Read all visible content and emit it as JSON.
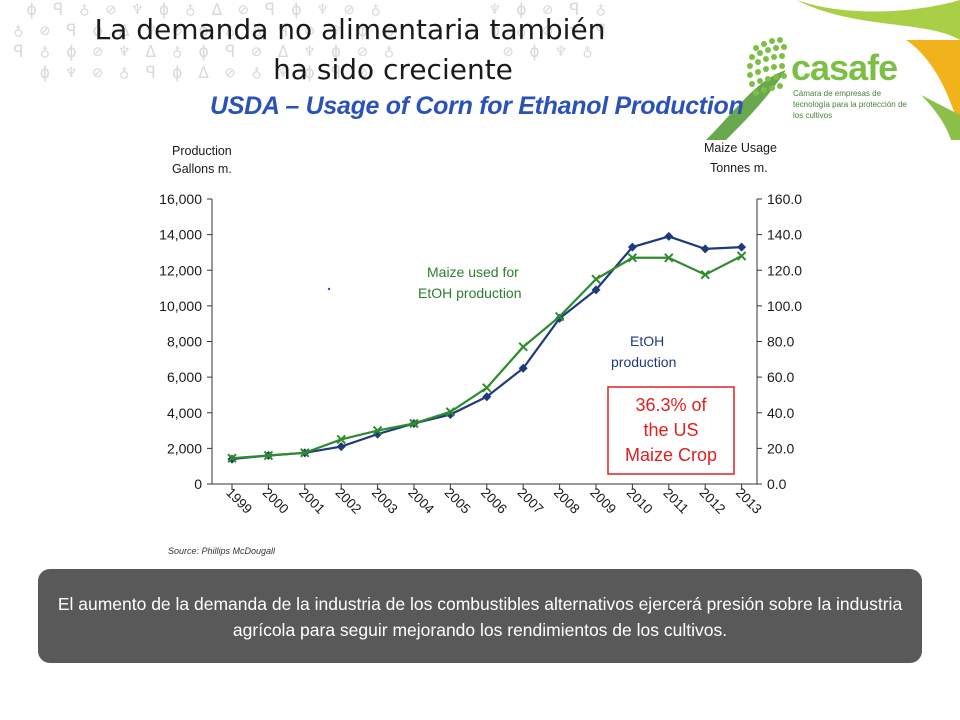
{
  "slide": {
    "title_line1": "La demanda no alimentaria también",
    "title_line2": "ha sido creciente",
    "logo_name": "casafe",
    "logo_tagline": "Cámara de empresas de tecnología para la protección de los cultivos",
    "source": "Source: Phillips McDougall",
    "banner_text": "El aumento de la demanda de la industria de los combustibles alternativos ejercerá presión sobre la industria agrícola para seguir mejorando los rendimientos de los cultivos."
  },
  "chart_data": {
    "type": "line",
    "title": "USDA – Usage of Corn for Ethanol Production",
    "y_left_label": [
      "Production",
      "Gallons m."
    ],
    "y_right_label": [
      "Maize Usage",
      "Tonnes m."
    ],
    "x": [
      "1999",
      "2000",
      "2001",
      "2002",
      "2003",
      "2004",
      "2005",
      "2006",
      "2007",
      "2008",
      "2009",
      "2010",
      "2011",
      "2012",
      "2013"
    ],
    "y_left_ticks": [
      "0",
      "2,000",
      "4,000",
      "6,000",
      "8,000",
      "10,000",
      "12,000",
      "14,000",
      "16,000"
    ],
    "y_right_ticks": [
      "0.0",
      "20.0",
      "40.0",
      "60.0",
      "80.0",
      "100.0",
      "120.0",
      "140.0",
      "160.0"
    ],
    "ylim_left": [
      0,
      16000
    ],
    "ylim_right": [
      0,
      160
    ],
    "series": [
      {
        "name": "EtOH production",
        "axis": "left",
        "color": "#1f3a7a",
        "marker": "diamond",
        "values": [
          1400,
          1600,
          1750,
          2100,
          2800,
          3400,
          3900,
          4900,
          6500,
          9300,
          10900,
          13300,
          13900,
          13200,
          13300
        ]
      },
      {
        "name": "Maize used for EtOH production",
        "axis": "right",
        "color": "#2e8b2e",
        "marker": "x",
        "values": [
          14.5,
          16,
          17.5,
          25,
          30,
          34,
          40.5,
          54,
          77,
          94,
          115,
          127,
          127,
          117.5,
          128
        ]
      }
    ],
    "annotations": {
      "maize_label": [
        "Maize used for",
        "EtOH production"
      ],
      "etoh_label": [
        "EtOH",
        "production"
      ],
      "callout": [
        "36.3% of",
        "the US",
        "Maize Crop"
      ],
      "callout_color": "#e02020"
    },
    "grid": false
  }
}
